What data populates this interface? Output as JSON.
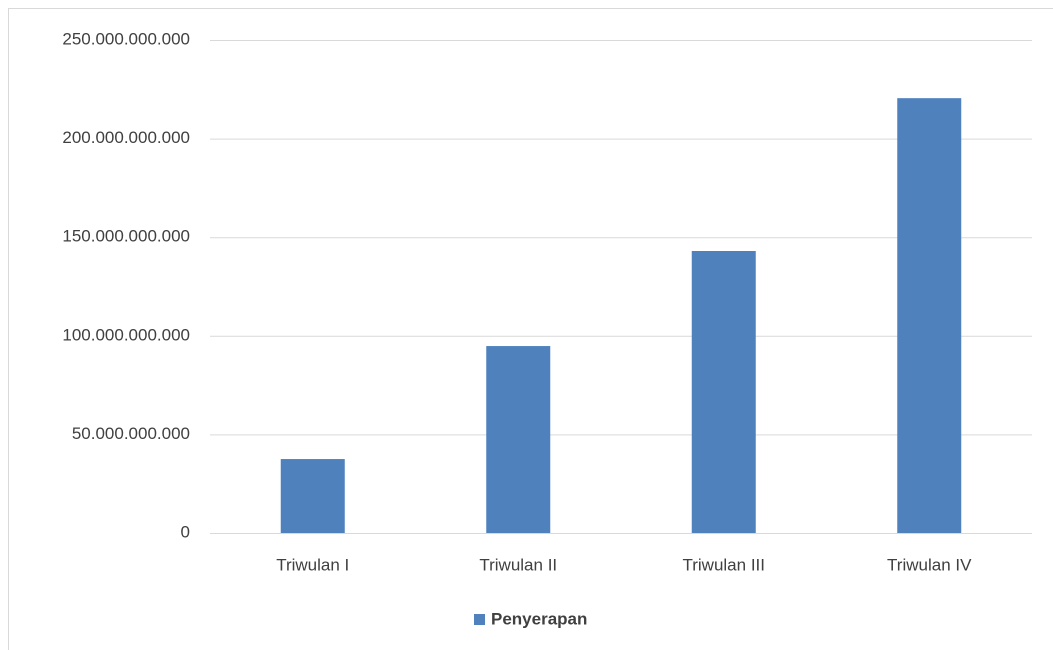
{
  "chart_data": {
    "type": "bar",
    "categories": [
      "Triwulan I",
      "Triwulan II",
      "Triwulan III",
      "Triwulan IV"
    ],
    "series": [
      {
        "name": "Penyerapan",
        "color": "#4f81bd",
        "values": [
          37500000000,
          94800000000,
          143000000000,
          220500000000
        ]
      }
    ],
    "ylim": [
      0,
      250000000000
    ],
    "yticks": [
      0,
      {
        "value": 50000000000,
        "label": "50.000.000.000"
      },
      {
        "value": 100000000000,
        "label": "100.000.000.000"
      },
      {
        "value": 150000000000,
        "label": "150.000.000.000"
      },
      {
        "value": 200000000000,
        "label": "200.000.000.000"
      },
      {
        "value": 250000000000,
        "label": "250.000.000.000"
      }
    ],
    "grid": true,
    "legend": "bottom"
  }
}
